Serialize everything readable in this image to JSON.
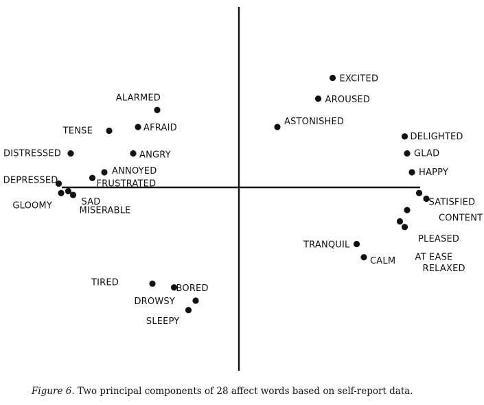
{
  "chart_data": {
    "type": "scatter",
    "title": "",
    "xlabel": "",
    "ylabel": "",
    "xlim": [
      -1.0,
      1.0
    ],
    "ylim": [
      -1.0,
      1.0
    ],
    "grid": false,
    "legend": "none",
    "axes_style": "crossing-at-origin",
    "points": [
      {
        "label": "EXCITED",
        "x": 0.39,
        "y": 0.58
      },
      {
        "label": "AROUSED",
        "x": 0.33,
        "y": 0.47
      },
      {
        "label": "ASTONISHED",
        "x": 0.16,
        "y": 0.32
      },
      {
        "label": "DELIGHTED",
        "x": 0.69,
        "y": 0.27
      },
      {
        "label": "GLAD",
        "x": 0.7,
        "y": 0.18
      },
      {
        "label": "HAPPY",
        "x": 0.72,
        "y": 0.08
      },
      {
        "label": "SATISFIED",
        "x": 0.75,
        "y": -0.03
      },
      {
        "label": "CONTENT",
        "x": 0.78,
        "y": -0.06
      },
      {
        "label": "PLEASED",
        "x": 0.7,
        "y": -0.12
      },
      {
        "label": "AT EASE",
        "x": 0.67,
        "y": -0.18
      },
      {
        "label": "RELAXED",
        "x": 0.69,
        "y": -0.21
      },
      {
        "label": "TRANQUIL",
        "x": 0.49,
        "y": -0.3
      },
      {
        "label": "CALM",
        "x": 0.52,
        "y": -0.37
      },
      {
        "label": "ALARMED",
        "x": -0.34,
        "y": 0.41
      },
      {
        "label": "AFRAID",
        "x": -0.42,
        "y": 0.32
      },
      {
        "label": "TENSE",
        "x": -0.54,
        "y": 0.3
      },
      {
        "label": "ANGRY",
        "x": -0.44,
        "y": 0.18
      },
      {
        "label": "DISTRESSED",
        "x": -0.7,
        "y": 0.18
      },
      {
        "label": "ANNOYED",
        "x": -0.56,
        "y": 0.08
      },
      {
        "label": "FRUSTRATED",
        "x": -0.61,
        "y": 0.05
      },
      {
        "label": "DEPRESSED",
        "x": -0.75,
        "y": 0.02
      },
      {
        "label": "GLOOMY",
        "x": -0.74,
        "y": -0.03
      },
      {
        "label": "SAD",
        "x": -0.69,
        "y": -0.04
      },
      {
        "label": "MISERABLE",
        "x": -0.71,
        "y": -0.02
      },
      {
        "label": "TIRED",
        "x": -0.36,
        "y": -0.51
      },
      {
        "label": "BORED",
        "x": -0.27,
        "y": -0.53
      },
      {
        "label": "DROWSY",
        "x": -0.18,
        "y": -0.6
      },
      {
        "label": "SLEEPY",
        "x": -0.21,
        "y": -0.65
      }
    ]
  },
  "caption": {
    "figure_label": "Figure 6.",
    "text": " Two principal components of 28 affect words based on self-report data."
  }
}
